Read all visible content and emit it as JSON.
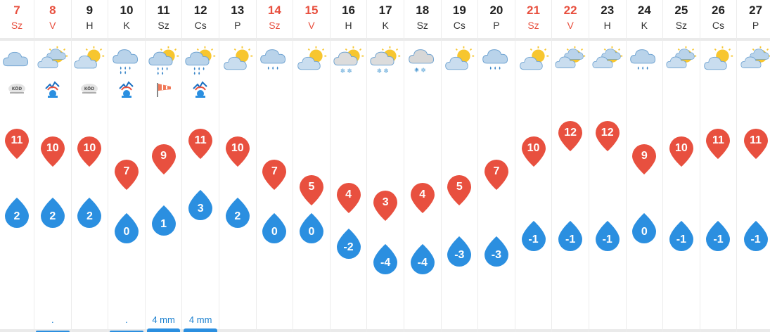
{
  "colors": {
    "weekend": "#e8503f",
    "max_pin": "#e8503f",
    "min_drop": "#2b8fe0",
    "precip": "#1a7fcf"
  },
  "days": [
    {
      "num": "7",
      "name": "Sz",
      "weekend": true,
      "icon": "cloudy-icon",
      "special": "fog-icon",
      "special_text": "KÖD",
      "max": "11",
      "min": "2",
      "precip": ""
    },
    {
      "num": "8",
      "name": "V",
      "weekend": true,
      "icon": "partly-sunny-cloudy-icon",
      "special": "ice-icon",
      "special_text": "",
      "max": "10",
      "min": "2",
      "precip": "."
    },
    {
      "num": "9",
      "name": "H",
      "weekend": false,
      "icon": "partly-cloudy-icon",
      "special": "fog-icon",
      "special_text": "KÖD",
      "max": "10",
      "min": "2",
      "precip": ""
    },
    {
      "num": "10",
      "name": "K",
      "weekend": false,
      "icon": "rain-icon",
      "special": "ice-icon",
      "special_text": "",
      "max": "7",
      "min": "0",
      "precip": "."
    },
    {
      "num": "11",
      "name": "Sz",
      "weekend": false,
      "icon": "sun-rain-icon",
      "special": "wind-icon",
      "special_text": "",
      "max": "9",
      "min": "1",
      "precip": "4 mm"
    },
    {
      "num": "12",
      "name": "Cs",
      "weekend": false,
      "icon": "sun-rain-icon",
      "special": "ice-icon",
      "special_text": "",
      "max": "11",
      "min": "3",
      "precip": "4 mm"
    },
    {
      "num": "13",
      "name": "P",
      "weekend": false,
      "icon": "partly-sunny-icon",
      "special": "",
      "special_text": "",
      "max": "10",
      "min": "2",
      "precip": ""
    },
    {
      "num": "14",
      "name": "Sz",
      "weekend": true,
      "icon": "light-rain-icon",
      "special": "",
      "special_text": "",
      "max": "7",
      "min": "0",
      "precip": ""
    },
    {
      "num": "15",
      "name": "V",
      "weekend": true,
      "icon": "partly-sunny-icon",
      "special": "",
      "special_text": "",
      "max": "5",
      "min": "0",
      "precip": ""
    },
    {
      "num": "16",
      "name": "H",
      "weekend": false,
      "icon": "sun-snow-icon",
      "special": "",
      "special_text": "",
      "max": "4",
      "min": "-2",
      "precip": ""
    },
    {
      "num": "17",
      "name": "K",
      "weekend": false,
      "icon": "sun-snow-icon",
      "special": "",
      "special_text": "",
      "max": "3",
      "min": "-4",
      "precip": ""
    },
    {
      "num": "18",
      "name": "Sz",
      "weekend": false,
      "icon": "sleet-icon",
      "special": "",
      "special_text": "",
      "max": "4",
      "min": "-4",
      "precip": ""
    },
    {
      "num": "19",
      "name": "Cs",
      "weekend": false,
      "icon": "partly-sunny-icon",
      "special": "",
      "special_text": "",
      "max": "5",
      "min": "-3",
      "precip": ""
    },
    {
      "num": "20",
      "name": "P",
      "weekend": false,
      "icon": "light-rain-icon",
      "special": "",
      "special_text": "",
      "max": "7",
      "min": "-3",
      "precip": ""
    },
    {
      "num": "21",
      "name": "Sz",
      "weekend": true,
      "icon": "partly-sunny-icon",
      "special": "",
      "special_text": "",
      "max": "10",
      "min": "-1",
      "precip": ""
    },
    {
      "num": "22",
      "name": "V",
      "weekend": true,
      "icon": "partly-sunny-cloudy-icon",
      "special": "",
      "special_text": "",
      "max": "12",
      "min": "-1",
      "precip": ""
    },
    {
      "num": "23",
      "name": "H",
      "weekend": false,
      "icon": "partly-sunny-cloudy-icon",
      "special": "",
      "special_text": "",
      "max": "12",
      "min": "-1",
      "precip": ""
    },
    {
      "num": "24",
      "name": "K",
      "weekend": false,
      "icon": "light-rain-icon",
      "special": "",
      "special_text": "",
      "max": "9",
      "min": "0",
      "precip": ""
    },
    {
      "num": "25",
      "name": "Sz",
      "weekend": false,
      "icon": "partly-sunny-cloudy-icon",
      "special": "",
      "special_text": "",
      "max": "10",
      "min": "-1",
      "precip": ""
    },
    {
      "num": "26",
      "name": "Cs",
      "weekend": false,
      "icon": "partly-sunny-icon",
      "special": "",
      "special_text": "",
      "max": "11",
      "min": "-1",
      "precip": ""
    },
    {
      "num": "27",
      "name": "P",
      "weekend": false,
      "icon": "partly-sunny-cloudy-icon",
      "special": "",
      "special_text": "",
      "max": "11",
      "min": "-1",
      "precip": ""
    }
  ]
}
